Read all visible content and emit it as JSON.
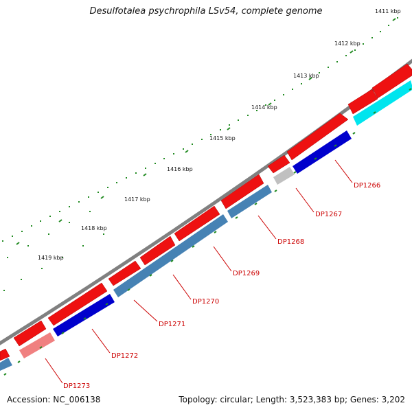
{
  "title": "Desulfotalea psychrophila LSv54, complete genome",
  "accession": "Accession: NC_006138",
  "topology": "Topology: circular; Length: 3,523,383 bp; Genes: 3,202",
  "ruler_labels": [
    "1411 kbp",
    "1412 kbp",
    "1413 kbp",
    "1414 kbp",
    "1415 kbp",
    "1416 kbp",
    "1417 kbp",
    "1418 kbp",
    "1419 kbp"
  ],
  "colors": {
    "backbone": "#808080",
    "forward_gene": "#ee1111",
    "reverse_gene": "#0000cc",
    "reverse_steel": "#4682b4",
    "cyan_gene": "#00e5ee",
    "pseudo_grey": "#c0c0c0",
    "pale_gene": "#f08080",
    "ticks": "#228b22",
    "labels": "#cc0000"
  },
  "gene_labels": [
    "DP1266",
    "DP1267",
    "DP1268",
    "DP1269",
    "DP1270",
    "DP1271",
    "DP1272",
    "DP1273"
  ]
}
